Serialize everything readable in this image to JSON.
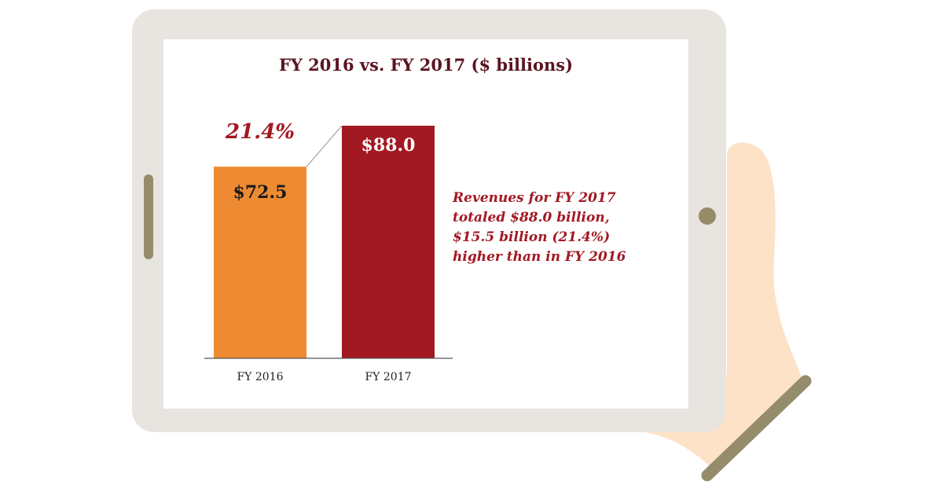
{
  "colors": {
    "frame": "#e8e4df",
    "hand": "#fde2c8",
    "stylus": "#958c6c",
    "bar_2016": "#ee8b32",
    "bar_2017": "#a21923",
    "title": "#5b1420",
    "accent_text": "#a21923"
  },
  "icons": {
    "side_button": "tablet-side-button-icon",
    "home_button": "tablet-home-button-icon",
    "stylus": "stylus-icon"
  },
  "chart_data": {
    "type": "bar",
    "title": "FY 2016 vs. FY 2017 ($ billions)",
    "categories": [
      "FY 2016",
      "FY 2017"
    ],
    "values": [
      72.5,
      88.0
    ],
    "data_labels": [
      "$72.5",
      "$88.0"
    ],
    "ylim": [
      0,
      88.0
    ],
    "grid": false,
    "annotation": {
      "text": "21.4%",
      "meaning": ""
    },
    "caption_lines": [
      "Revenues for FY 2017",
      "totaled $88.0 billion,",
      "$15.5 billion (21.4%)",
      "higher than in FY 2016"
    ]
  }
}
